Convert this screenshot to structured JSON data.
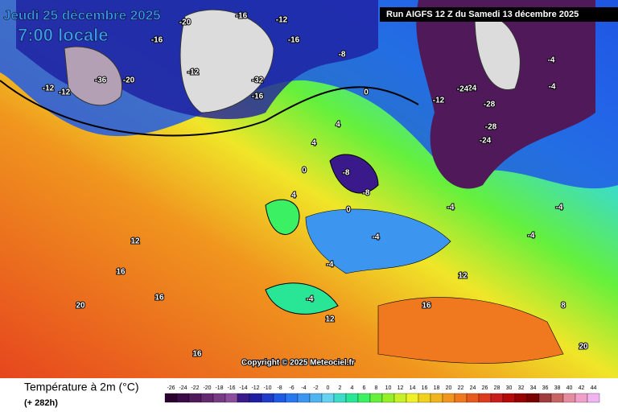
{
  "header": {
    "title": "Jeudi 25 décembre 2025",
    "subtitle": "7:00 locale",
    "run": "Run AIGFS 12 Z du Samedi 13 décembre 2025",
    "copyright": "Copyright © 2025 Meteociel.fr"
  },
  "legend": {
    "title": "Température à 2m (°C)",
    "lead": "(+ 282h)",
    "scale": [
      "-26",
      "-24",
      "-22",
      "-20",
      "-18",
      "-16",
      "-14",
      "-12",
      "-10",
      "-8",
      "-6",
      "-4",
      "-2",
      "0",
      "2",
      "4",
      "6",
      "8",
      "10",
      "12",
      "14",
      "16",
      "18",
      "20",
      "22",
      "24",
      "26",
      "28",
      "30",
      "32",
      "34",
      "36",
      "38",
      "40",
      "42",
      "44"
    ],
    "colors": [
      "#2a0030",
      "#3c0a46",
      "#501a5a",
      "#642a70",
      "#783c86",
      "#8c4e9c",
      "#3a1a8a",
      "#1e1ea0",
      "#1e3cc8",
      "#1e5ae6",
      "#2878f0",
      "#3c96f0",
      "#50b4f0",
      "#64d2f0",
      "#3cdcc8",
      "#28e696",
      "#3cf064",
      "#64f03c",
      "#96f028",
      "#c8f028",
      "#f0f028",
      "#f0d21e",
      "#f0b41e",
      "#f0961e",
      "#f0781e",
      "#e65a1e",
      "#dc3c1e",
      "#c81e1e",
      "#b40a0a",
      "#960000",
      "#7a0000",
      "#a03c3c",
      "#c86464",
      "#e68ca0",
      "#f0a0c8",
      "#f0b4f0"
    ]
  },
  "contour_labels": [
    "-12",
    "-12",
    "-16",
    "-20",
    "-16",
    "-12",
    "-36",
    "-20",
    "-12",
    "-8",
    "-16",
    "-24",
    "-28",
    "-28",
    "-24",
    "-4",
    "-4",
    "-4",
    "-4",
    "0",
    "0",
    "4",
    "4",
    "0",
    "-8",
    "-4",
    "-4",
    "-4",
    "-4",
    "-12",
    "12",
    "12",
    "16",
    "16",
    "20",
    "20",
    "16",
    "16",
    "12",
    "20",
    "8",
    "-8",
    "4",
    "-24",
    "-32",
    "-16"
  ]
}
